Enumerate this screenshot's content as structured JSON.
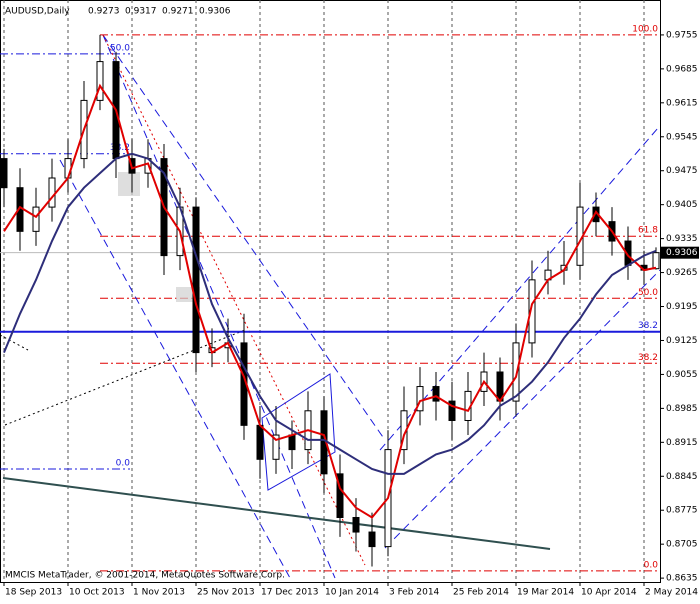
{
  "chart_data": {
    "type": "candlestick",
    "header": {
      "symbol": "AUDUSD,Daily",
      "ohlc": [
        0.9273,
        0.9317,
        0.9271,
        0.9306
      ]
    },
    "footer": "MMCIS MetaTrader, © 2001-2014, MetaQuotes Software Corp.",
    "x": [
      0,
      4,
      8,
      12,
      16,
      20,
      24,
      28,
      32,
      36,
      40,
      44,
      48,
      52,
      56,
      60,
      64,
      68,
      72,
      76,
      80,
      84,
      88,
      92,
      96,
      100,
      104,
      108,
      112,
      116,
      120,
      124,
      128,
      132,
      136,
      140,
      144,
      148,
      152,
      156,
      160,
      163
    ],
    "open": [
      0.95,
      0.944,
      0.935,
      0.94,
      0.946,
      0.95,
      0.962,
      0.97,
      0.95,
      0.947,
      0.95,
      0.93,
      0.94,
      0.91,
      0.911,
      0.912,
      0.895,
      0.888,
      0.893,
      0.89,
      0.898,
      0.885,
      0.876,
      0.873,
      0.87,
      0.89,
      0.898,
      0.903,
      0.9,
      0.896,
      0.902,
      0.906,
      0.9,
      0.912,
      0.925,
      0.927,
      0.928,
      0.94,
      0.937,
      0.933,
      0.928,
      0.9273
    ],
    "high": [
      0.952,
      0.948,
      0.944,
      0.95,
      0.954,
      0.966,
      0.9755,
      0.972,
      0.954,
      0.954,
      0.953,
      0.944,
      0.942,
      0.915,
      0.917,
      0.918,
      0.899,
      0.899,
      0.896,
      0.902,
      0.901,
      0.889,
      0.88,
      0.877,
      0.894,
      0.903,
      0.907,
      0.906,
      0.904,
      0.906,
      0.91,
      0.909,
      0.916,
      0.929,
      0.931,
      0.933,
      0.945,
      0.943,
      0.94,
      0.936,
      0.931,
      0.9317
    ],
    "low": [
      0.94,
      0.931,
      0.932,
      0.937,
      0.943,
      0.948,
      0.96,
      0.946,
      0.943,
      0.944,
      0.926,
      0.927,
      0.906,
      0.907,
      0.908,
      0.892,
      0.884,
      0.885,
      0.886,
      0.887,
      0.881,
      0.872,
      0.869,
      0.8659,
      0.868,
      0.887,
      0.895,
      0.896,
      0.892,
      0.893,
      0.899,
      0.896,
      0.897,
      0.909,
      0.922,
      0.924,
      0.925,
      0.934,
      0.93,
      0.925,
      0.924,
      0.9271
    ],
    "close": [
      0.944,
      0.935,
      0.94,
      0.946,
      0.95,
      0.962,
      0.97,
      0.95,
      0.947,
      0.95,
      0.93,
      0.94,
      0.91,
      0.911,
      0.912,
      0.895,
      0.888,
      0.893,
      0.89,
      0.898,
      0.885,
      0.876,
      0.873,
      0.87,
      0.89,
      0.898,
      0.903,
      0.9,
      0.896,
      0.902,
      0.906,
      0.9,
      0.912,
      0.925,
      0.927,
      0.928,
      0.94,
      0.937,
      0.933,
      0.928,
      0.927,
      0.9306
    ],
    "series": [
      {
        "color": "#e00000",
        "values": [
          0.935,
          0.94,
          0.938,
          0.942,
          0.946,
          0.956,
          0.965,
          0.96,
          0.948,
          0.949,
          0.94,
          0.935,
          0.92,
          0.91,
          0.912,
          0.905,
          0.895,
          0.892,
          0.893,
          0.894,
          0.893,
          0.882,
          0.878,
          0.876,
          0.88,
          0.893,
          0.9,
          0.901,
          0.899,
          0.898,
          0.904,
          0.9,
          0.905,
          0.92,
          0.925,
          0.927,
          0.933,
          0.939,
          0.935,
          0.93,
          0.927,
          0.9275
        ]
      },
      {
        "color": "#2e2e7a",
        "values": [
          0.91,
          0.918,
          0.925,
          0.933,
          0.94,
          0.944,
          0.947,
          0.95,
          0.951,
          0.95,
          0.947,
          0.94,
          0.93,
          0.92,
          0.913,
          0.907,
          0.901,
          0.896,
          0.894,
          0.892,
          0.892,
          0.89,
          0.888,
          0.886,
          0.885,
          0.885,
          0.887,
          0.889,
          0.89,
          0.892,
          0.895,
          0.899,
          0.901,
          0.904,
          0.908,
          0.913,
          0.917,
          0.922,
          0.926,
          0.928,
          0.93,
          0.931
        ]
      }
    ],
    "xlim": [
      -1,
      164
    ],
    "xticks": [
      {
        "value": 0,
        "label": "18 Sep 2013"
      },
      {
        "value": 16,
        "label": "10 Oct 2013"
      },
      {
        "value": 32,
        "label": "1 Nov 2013"
      },
      {
        "value": 48,
        "label": "25 Nov 2013"
      },
      {
        "value": 64,
        "label": "17 Dec 2013"
      },
      {
        "value": 80,
        "label": "10 Jan 2014"
      },
      {
        "value": 96,
        "label": "3 Feb 2014"
      },
      {
        "value": 112,
        "label": "25 Feb 2014"
      },
      {
        "value": 128,
        "label": "19 Mar 2014"
      },
      {
        "value": 144,
        "label": "10 Apr 2014"
      },
      {
        "value": 160,
        "label": "2 May 2014"
      }
    ],
    "ylim": [
      0.8627,
      0.9827
    ],
    "yticks": [
      0.9755,
      0.9685,
      0.9615,
      0.9545,
      0.9475,
      0.9405,
      0.9335,
      0.9265,
      0.9195,
      0.9125,
      0.9055,
      0.8985,
      0.8915,
      0.8845,
      0.8775,
      0.8705,
      0.8635
    ],
    "current_price": 0.9306,
    "fib_red": [
      {
        "label": "100.0",
        "value": 0.9755
      },
      {
        "label": "61.8",
        "value": 0.934
      },
      {
        "label": "50.0",
        "value": 0.9212
      },
      {
        "label": "38.2",
        "value": 0.9078
      },
      {
        "label": "0.0",
        "value": 0.865
      }
    ],
    "fib_blue": [
      {
        "label": "50.0",
        "value": 0.9716
      },
      {
        "label": "38.2",
        "value": 0.951
      },
      {
        "label": "0.0",
        "value": 0.886
      }
    ],
    "level_line": {
      "label": "38.2",
      "value": 0.9143
    }
  }
}
